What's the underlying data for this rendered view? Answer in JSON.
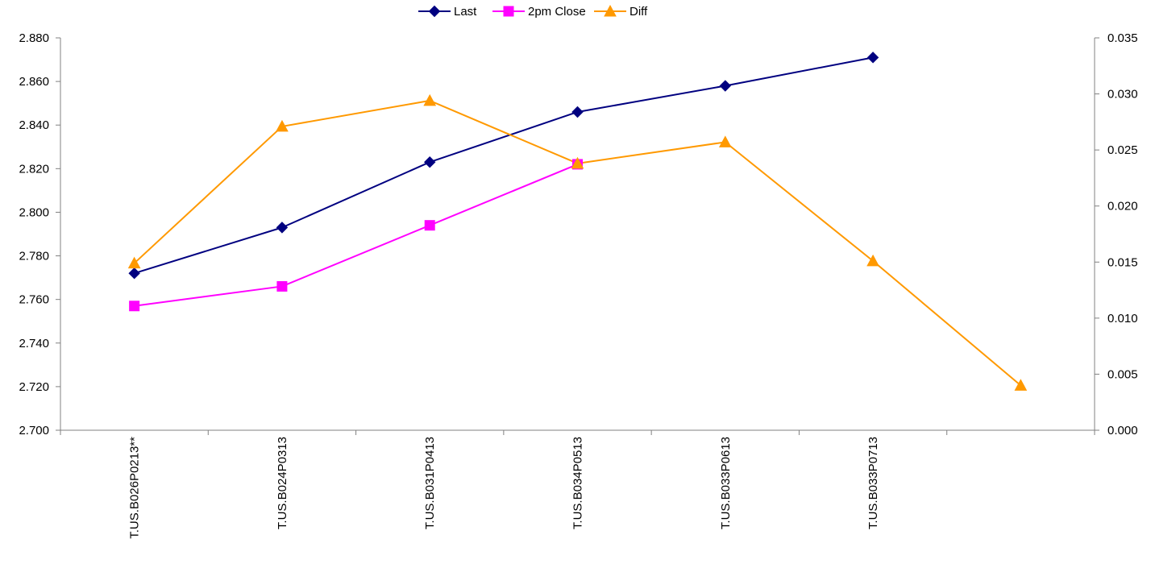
{
  "chart_data": {
    "type": "line",
    "categories": [
      "T.US.B026P0213**",
      "T.US.B024P0313",
      "T.US.B031P0413",
      "T.US.B034P0513",
      "T.US.B033P0613",
      "T.US.B033P0713",
      ""
    ],
    "y_left": {
      "ylim": [
        2.7,
        2.88
      ],
      "ticks": [
        "2.880",
        "2.860",
        "2.840",
        "2.820",
        "2.800",
        "2.780",
        "2.760",
        "2.740",
        "2.720",
        "2.700"
      ]
    },
    "y_right": {
      "ylim": [
        0.0,
        0.035
      ],
      "ticks": [
        "0.035",
        "0.030",
        "0.025",
        "0.020",
        "0.015",
        "0.010",
        "0.005",
        "0.000"
      ]
    },
    "series": [
      {
        "name": "Last",
        "axis": "left",
        "color": "#000080",
        "marker": "diamond",
        "values": [
          2.772,
          2.793,
          2.823,
          2.846,
          2.858,
          2.871,
          null
        ]
      },
      {
        "name": "2pm Close",
        "axis": "left",
        "color": "#ff00ff",
        "marker": "square",
        "values": [
          2.757,
          2.766,
          2.794,
          2.822,
          null,
          null,
          null
        ]
      },
      {
        "name": "Diff",
        "axis": "right",
        "color": "#ff9900",
        "marker": "triangle",
        "values": [
          0.0149,
          0.0271,
          0.0294,
          0.0238,
          0.0257,
          0.0151,
          0.004
        ]
      }
    ],
    "legend": {
      "position": "top",
      "labels": [
        "Last",
        "2pm Close",
        "Diff"
      ]
    },
    "grid": false
  }
}
